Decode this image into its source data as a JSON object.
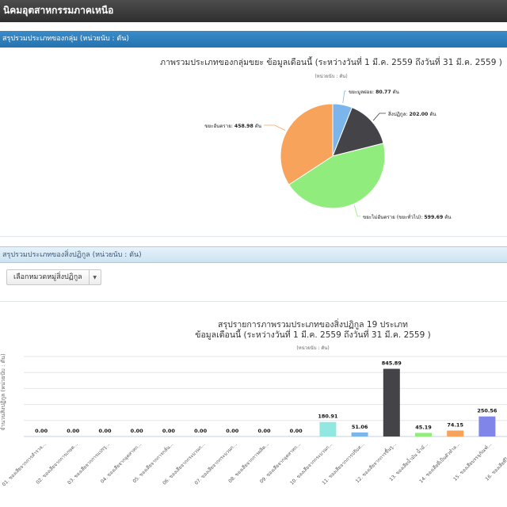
{
  "header": {
    "title": "นิคมอุตสาหกรรมภาคเหนือ"
  },
  "panel1": {
    "title": "สรุปรวมประเภทของกลุ่ม (หน่วยนับ : ตัน)"
  },
  "panel2": {
    "title": "สรุปรวมประเภทของสิ่งปฏิกูล (หน่วยนับ : ตัน)",
    "dropdown_label": "เลือกหมวดหมู่สิ่งปฏิกูล"
  },
  "chart_data": [
    {
      "type": "pie",
      "title": "ภาพรวมประเภทของกลุ่มขยะ ข้อมูลเดือนนี้ (ระหว่างวันที่ 1 มี.ค. 2559 ถึงวันที่ 31 มี.ค. 2559 )",
      "subtitle": "(หน่วยนับ : ตัน)",
      "slices": [
        {
          "label": "ขยะมูลฝอย",
          "value": 80.77,
          "display": "80.77",
          "color": "#7cb5ec"
        },
        {
          "label": "สิ่งปฏิกูล",
          "value": 202.0,
          "display": "202.00",
          "color": "#434348"
        },
        {
          "label": "ขยะไม่อันตราย (ขยะทั่วไป)",
          "value": 599.69,
          "display": "599.69",
          "color": "#90ed7d"
        },
        {
          "label": "ขยะอันตราย",
          "value": 458.98,
          "display": "458.98",
          "color": "#f7a35c"
        }
      ],
      "unit": "ตัน"
    },
    {
      "type": "bar",
      "title_lines": [
        "สรุปรายการภาพรวมประเภทของสิ่งปฏิกูล 19 ประเภท",
        "ข้อมูลเดือนนี้ (ระหว่างวันที่ 1 มี.ค. 2559 ถึงวันที่ 31 มี.ค. 2559 )"
      ],
      "subtitle": "(หน่วยนับ : ตัน)",
      "ylabel": "จำนวนสิ่งปฏิกูล (หน่วยนับ : ตัน)",
      "ylim": [
        0,
        1000
      ],
      "categories": [
        "01. ของเสียจากการสำรวจ...",
        "02. ของเสียจากการเกษต...",
        "03. ของเสียจากการแปรรู...",
        "04. ของเสียจากอุตสาหก...",
        "05. ของเสียจากการกลั่น...",
        "06. ของเสียจากกระบวนก...",
        "07. ของเสียจากกระบวนก...",
        "08. ของเสียจากการผลิต...",
        "09. ของเสียจากอุตสาหก...",
        "10. ของเสียจากกระบวนก...",
        "11. ของเสียจากการปรับส...",
        "12. ของเสียจากการขึ้นรู...",
        "13. ของเสียน้ำมัน น้ำมั...",
        "14. ของเสียที่เป็นตัวทำล...",
        "15. ของเสียบรรจุภัณฑ์...",
        "16. ของเสียที่ไม่ได้ระบุ..."
      ],
      "values": [
        0,
        0,
        0,
        0,
        0,
        0,
        0,
        0,
        0,
        180.91,
        51.06,
        845.89,
        45.19,
        74.15,
        250.56,
        0
      ],
      "value_labels": [
        "0.00",
        "0.00",
        "0.00",
        "0.00",
        "0.00",
        "0.00",
        "0.00",
        "0.00",
        "0.00",
        "180.91",
        "51.06",
        "845.89",
        "45.19",
        "74.15",
        "250.56",
        ""
      ],
      "colors": [
        "#7cb5ec",
        "#434348",
        "#90ed7d",
        "#f7a35c",
        "#8085e9",
        "#f15c80",
        "#e4d354",
        "#2b908f",
        "#f45b5b",
        "#91e8e1",
        "#7cb5ec",
        "#434348",
        "#90ed7d",
        "#f7a35c",
        "#8085e9",
        "#f15c80"
      ]
    }
  ]
}
